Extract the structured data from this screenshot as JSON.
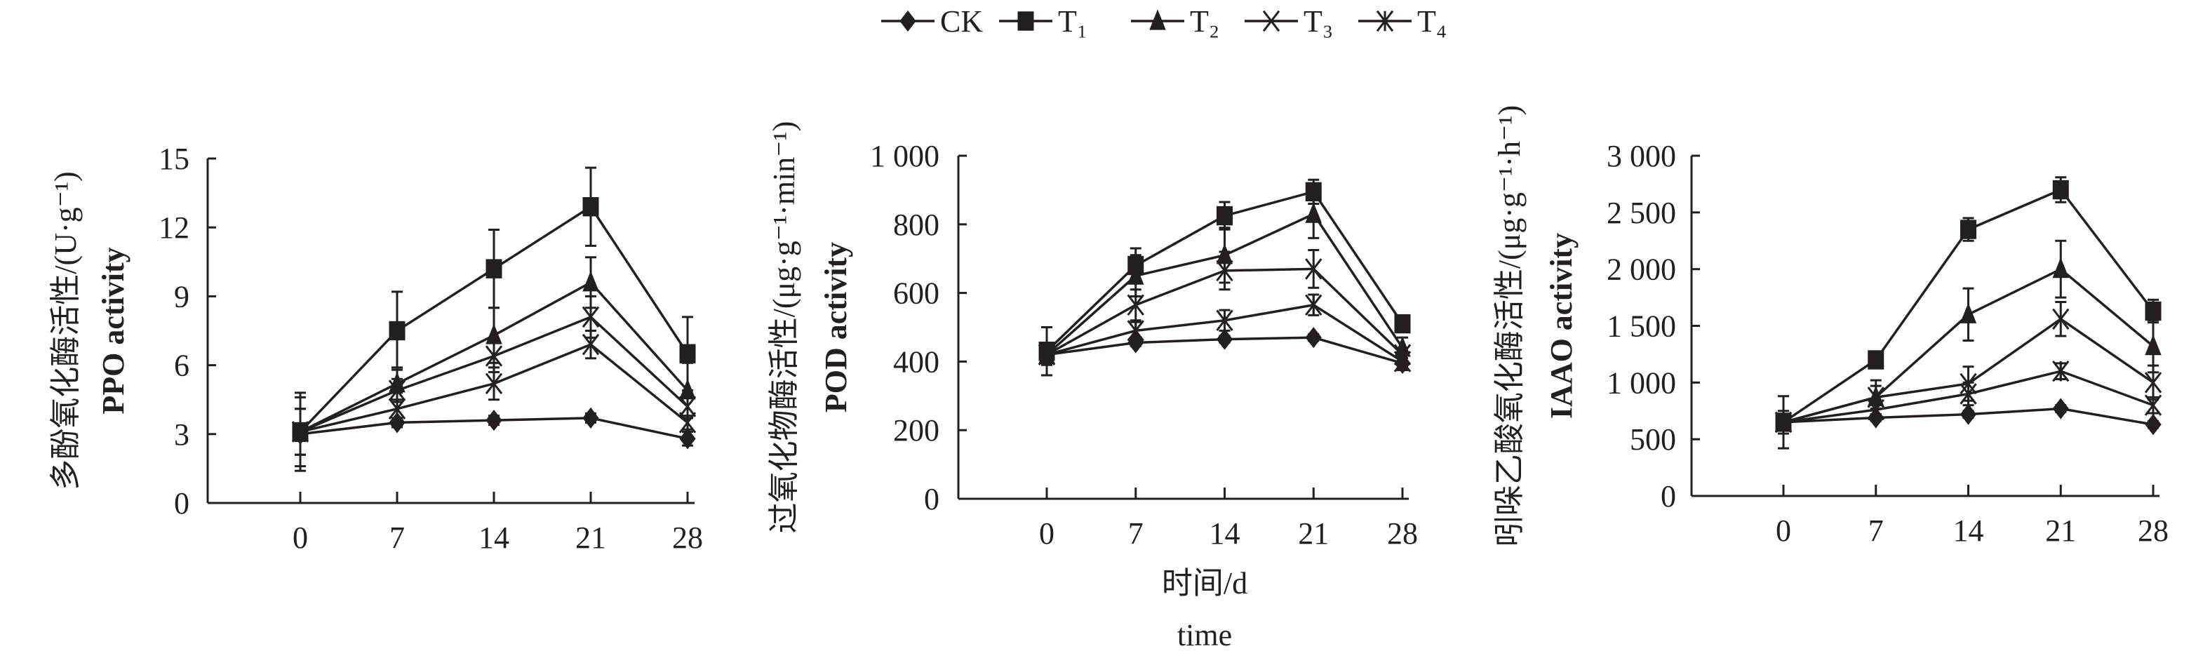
{
  "legend": [
    "CK",
    "T₁",
    "T₂",
    "T₃",
    "T₄"
  ],
  "x_label_cn": "时间/d",
  "x_label_en": "time",
  "chart_data": [
    {
      "type": "line",
      "title": "",
      "ylabel_cn": "多酚氧化酶活性/(U·g⁻¹)",
      "ylabel_en": "PPO activity",
      "x": [
        0,
        7,
        14,
        21,
        28
      ],
      "xticks": [
        "0",
        "7",
        "14",
        "21",
        "28"
      ],
      "ylim": [
        0,
        15
      ],
      "yticks": [
        "0",
        "3",
        "6",
        "9",
        "12",
        "15"
      ],
      "ytick_values": [
        0,
        3,
        6,
        9,
        12,
        15
      ],
      "series": [
        {
          "name": "CK",
          "marker": "diamond",
          "values": [
            3.0,
            3.5,
            3.6,
            3.7,
            2.8
          ],
          "errors": [
            0.3,
            0.2,
            0.2,
            0.2,
            0.3
          ]
        },
        {
          "name": "T₁",
          "marker": "square",
          "values": [
            3.1,
            7.5,
            10.2,
            12.9,
            6.5
          ],
          "errors": [
            1.7,
            1.7,
            1.7,
            1.7,
            1.6
          ]
        },
        {
          "name": "T₂",
          "marker": "triangle",
          "values": [
            3.1,
            5.2,
            7.3,
            9.6,
            4.9
          ],
          "errors": [
            1.0,
            0.7,
            1.2,
            1.1,
            1.2
          ]
        },
        {
          "name": "T₃",
          "marker": "x",
          "values": [
            3.1,
            4.9,
            6.4,
            8.1,
            4.2
          ],
          "errors": [
            1.0,
            0.5,
            0.7,
            0.9,
            0.5
          ]
        },
        {
          "name": "T₄",
          "marker": "asterisk",
          "values": [
            3.1,
            4.1,
            5.2,
            6.9,
            3.5
          ],
          "errors": [
            1.5,
            0.7,
            0.7,
            0.6,
            0.3
          ]
        }
      ]
    },
    {
      "type": "line",
      "title": "",
      "ylabel_cn": "过氧化物酶活性/(μg·g⁻¹·min⁻¹)",
      "ylabel_en": "POD activity",
      "x": [
        0,
        7,
        14,
        21,
        28
      ],
      "xticks": [
        "0",
        "7",
        "14",
        "21",
        "28"
      ],
      "ylim": [
        0,
        1000
      ],
      "yticks": [
        "0",
        "200",
        "400",
        "600",
        "800",
        "1 000"
      ],
      "ytick_values": [
        0,
        200,
        400,
        600,
        800,
        1000
      ],
      "series": [
        {
          "name": "CK",
          "marker": "diamond",
          "values": [
            420,
            455,
            465,
            470,
            395
          ],
          "errors": [
            20,
            10,
            10,
            10,
            15
          ]
        },
        {
          "name": "T₁",
          "marker": "square",
          "values": [
            430,
            680,
            825,
            895,
            510
          ],
          "errors": [
            70,
            50,
            40,
            35,
            20
          ]
        },
        {
          "name": "T₂",
          "marker": "triangle",
          "values": [
            420,
            650,
            710,
            830,
            440
          ],
          "errors": [
            20,
            60,
            80,
            70,
            30
          ]
        },
        {
          "name": "T₃",
          "marker": "x",
          "values": [
            420,
            565,
            665,
            670,
            420
          ],
          "errors": [
            30,
            45,
            55,
            55,
            20
          ]
        },
        {
          "name": "T₄",
          "marker": "asterisk",
          "values": [
            420,
            490,
            520,
            565,
            400
          ],
          "errors": [
            25,
            25,
            30,
            30,
            25
          ]
        }
      ]
    },
    {
      "type": "line",
      "title": "",
      "ylabel_cn": "吲哚乙酸氧化酶活性/(μg·g⁻¹·h⁻¹)",
      "ylabel_en": "IAAO activity",
      "x": [
        0,
        7,
        14,
        21,
        28
      ],
      "xticks": [
        "0",
        "7",
        "14",
        "21",
        "28"
      ],
      "ylim": [
        0,
        3000
      ],
      "yticks": [
        "0",
        "500",
        "1 000",
        "1 500",
        "2 000",
        "2 500",
        "3 000"
      ],
      "ytick_values": [
        0,
        500,
        1000,
        1500,
        2000,
        2500,
        3000
      ],
      "series": [
        {
          "name": "CK",
          "marker": "diamond",
          "values": [
            650,
            690,
            720,
            770,
            630
          ],
          "errors": [
            40,
            30,
            30,
            30,
            30
          ]
        },
        {
          "name": "T₁",
          "marker": "square",
          "values": [
            650,
            1200,
            2350,
            2700,
            1630
          ],
          "errors": [
            60,
            50,
            100,
            110,
            100
          ]
        },
        {
          "name": "T₂",
          "marker": "triangle",
          "values": [
            650,
            870,
            1600,
            2000,
            1320
          ],
          "errors": [
            50,
            100,
            230,
            250,
            230
          ]
        },
        {
          "name": "T₃",
          "marker": "x",
          "values": [
            650,
            870,
            990,
            1560,
            1000
          ],
          "errors": [
            230,
            150,
            150,
            150,
            150
          ]
        },
        {
          "name": "T₄",
          "marker": "asterisk",
          "values": [
            650,
            760,
            900,
            1100,
            800
          ],
          "errors": [
            100,
            40,
            100,
            70,
            70
          ]
        }
      ]
    }
  ]
}
